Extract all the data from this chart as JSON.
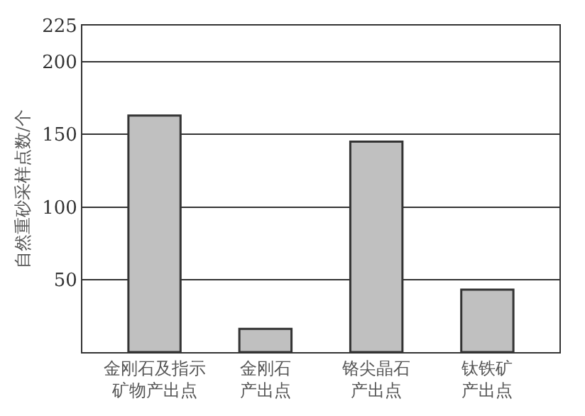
{
  "chart_data": {
    "type": "bar",
    "ylabel": "自然重砂采样点数/个",
    "categories": [
      "金刚石及指示矿物产出点",
      "金刚石产出点",
      "铬尖晶石产出点",
      "钛铁矿产出点"
    ],
    "values": [
      163,
      16,
      145,
      43
    ],
    "color": "#c0c0c0",
    "ylim": [
      0,
      225
    ],
    "yticks": [
      50,
      100,
      150,
      200,
      225
    ],
    "grid": "y"
  }
}
